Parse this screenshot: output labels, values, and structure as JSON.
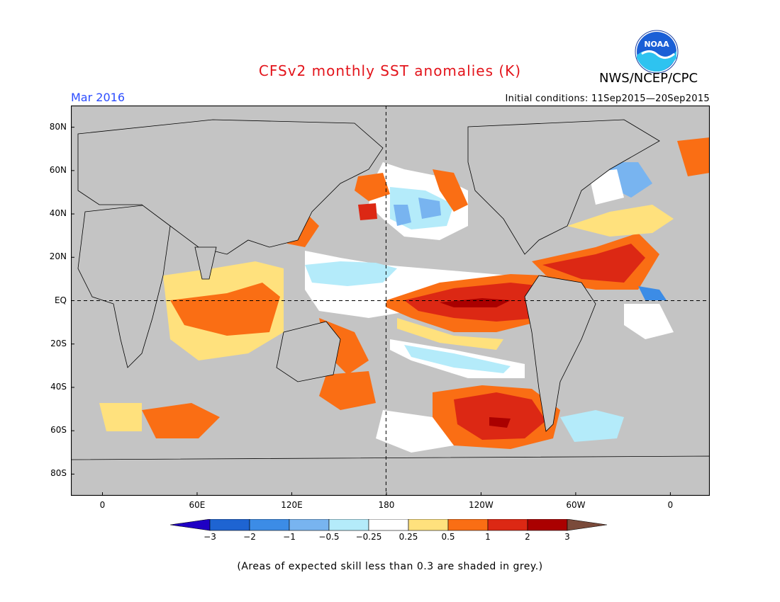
{
  "header": {
    "title": "CFSv2 monthly SST anomalies (K)",
    "agency": "NWS/NCEP/CPC",
    "logo_text": "NOAA",
    "month": "Mar 2016",
    "initial_conditions": "Initial conditions: 11Sep2015—20Sep2015"
  },
  "map": {
    "lat_ticks": [
      {
        "label": "80N",
        "value": 80
      },
      {
        "label": "60N",
        "value": 60
      },
      {
        "label": "40N",
        "value": 40
      },
      {
        "label": "20N",
        "value": 20
      },
      {
        "label": "EQ",
        "value": 0
      },
      {
        "label": "20S",
        "value": -20
      },
      {
        "label": "40S",
        "value": -40
      },
      {
        "label": "60S",
        "value": -60
      },
      {
        "label": "80S",
        "value": -80
      }
    ],
    "lon_ticks": [
      {
        "label": "0",
        "value": 0
      },
      {
        "label": "60E",
        "value": 60
      },
      {
        "label": "120E",
        "value": 120
      },
      {
        "label": "180",
        "value": 180
      },
      {
        "label": "120W",
        "value": 240
      },
      {
        "label": "60W",
        "value": 300
      },
      {
        "label": "0",
        "value": 360
      }
    ],
    "lon_range": [
      -20,
      385
    ],
    "lat_range": [
      -90,
      90
    ],
    "colors": {
      "land": "#c4c4c4",
      "grey_skill": "#c8c8c8",
      "neutral": "#ffffff"
    }
  },
  "colorbar": {
    "labels": [
      "−3",
      "−2",
      "−1",
      "−0.5",
      "−0.25",
      "0.25",
      "0.5",
      "1",
      "2",
      "3"
    ],
    "colors": [
      "#1f00c4",
      "#1e64d2",
      "#3c8ce6",
      "#78b4f0",
      "#b4ebfa",
      "#ffffff",
      "#ffe17d",
      "#fa6e14",
      "#dc2814",
      "#aa0000",
      "#7a4a3a"
    ]
  },
  "note": "(Areas of expected skill less than 0.3 are shaded in grey.)"
}
